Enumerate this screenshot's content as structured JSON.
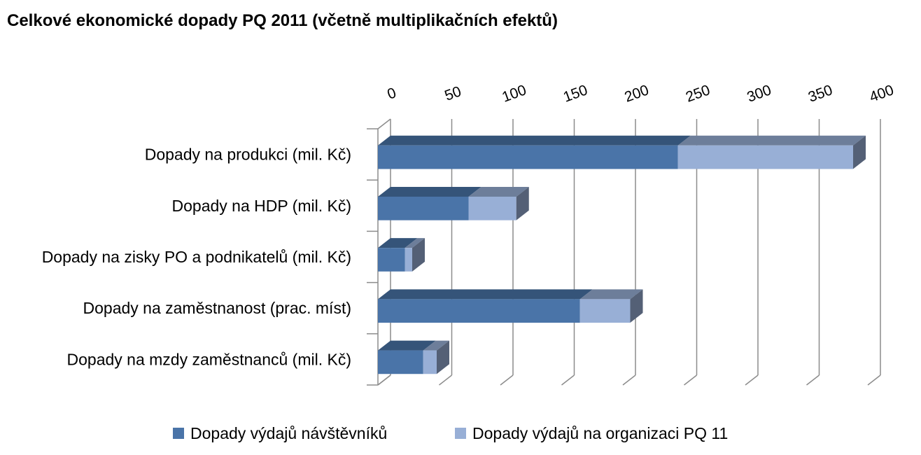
{
  "chart_data": {
    "type": "bar",
    "orientation": "horizontal",
    "stacked": true,
    "three_d": true,
    "title": "Celkové ekonomické dopady PQ 2011 (včetně multiplikačních efektů)",
    "categories": [
      "Dopady na produkci (mil. Kč)",
      "Dopady na HDP (mil. Kč)",
      "Dopady na zisky PO a podnikatelů (mil. Kč)",
      "Dopady na zaměstnanost (prac. míst)",
      "Dopady na mzdy zaměstnanců (mil. Kč)"
    ],
    "series": [
      {
        "name": "Dopady výdajů návštěvníků",
        "values": [
          245,
          74,
          22,
          165,
          37
        ],
        "color": "#4a74a8"
      },
      {
        "name": "Dopady výdajů na organizaci PQ 11",
        "values": [
          143,
          39,
          6,
          41,
          11
        ],
        "color": "#98afd6"
      }
    ],
    "xlim": [
      0,
      400
    ],
    "xticks": [
      "0",
      "50",
      "100",
      "150",
      "200",
      "250",
      "300",
      "350",
      "400"
    ],
    "axis_position": "top",
    "grid": true,
    "legend_position": "bottom"
  }
}
